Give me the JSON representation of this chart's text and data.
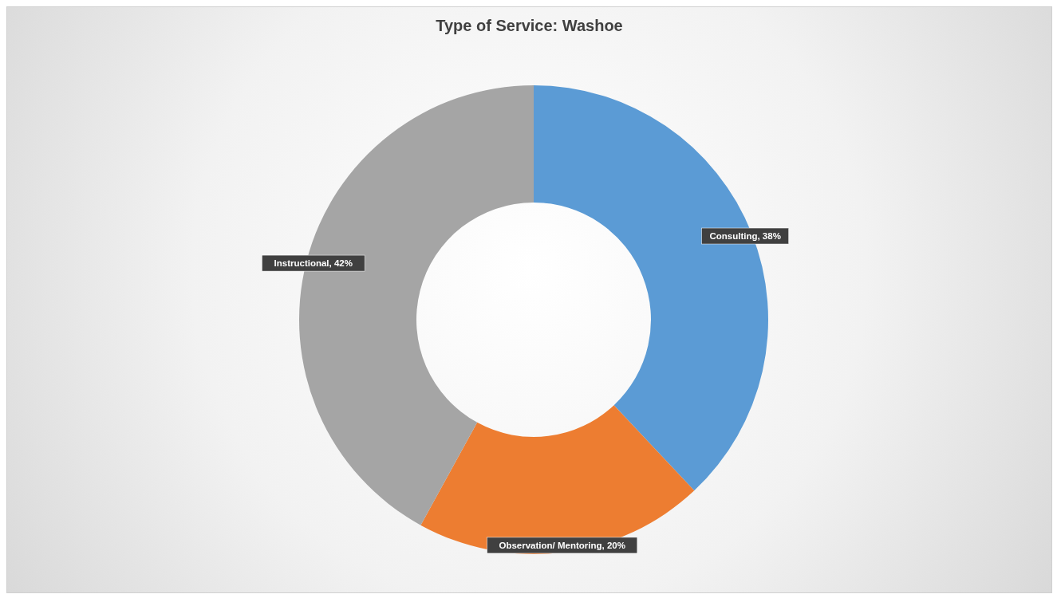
{
  "chart_data": {
    "type": "donut",
    "title": "Type of Service: Washoe",
    "categories": [
      "Consulting",
      "Observation/ Mentoring",
      "Instructional"
    ],
    "values": [
      38,
      20,
      42
    ],
    "colors": [
      "#5b9bd5",
      "#ed7d31",
      "#a5a5a5"
    ],
    "value_labels": [
      ", 38%",
      ", 20%",
      ", 42%"
    ],
    "legend": false
  }
}
